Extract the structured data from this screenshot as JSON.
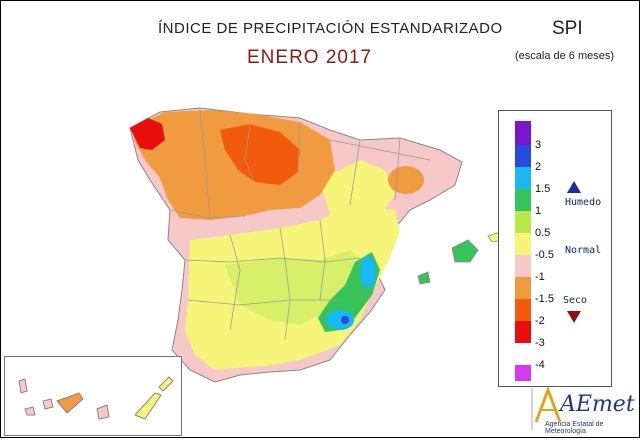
{
  "header": {
    "title": "ÍNDICE DE PRECIPITACIÓN ESTANDARIZADO",
    "subtitle": "ENERO 2017",
    "index": "SPI",
    "scale": "(escala de 6 meses)"
  },
  "legend": {
    "ticks": [
      "3",
      "2",
      "1.5",
      "1",
      "0.5",
      "-0.5",
      "-1",
      "-1.5",
      "-2",
      "-3",
      "-4"
    ],
    "humid_label": "Humedo",
    "normal_label": "Normal",
    "dry_label": "Seco",
    "colors": [
      "#7a16c8",
      "#2a49e0",
      "#18b8f0",
      "#38c25a",
      "#b8e84a",
      "#f5f57a",
      "#f7c8c8",
      "#f19b40",
      "#f25a0c",
      "#e80e0e",
      "#ffffff",
      "#d13cf0"
    ],
    "humid_color": "#1a2aa0",
    "dry_color": "#8b1010"
  },
  "logo": {
    "name": "AEmet",
    "caption": "Agencia Estatal de Meteorología"
  }
}
